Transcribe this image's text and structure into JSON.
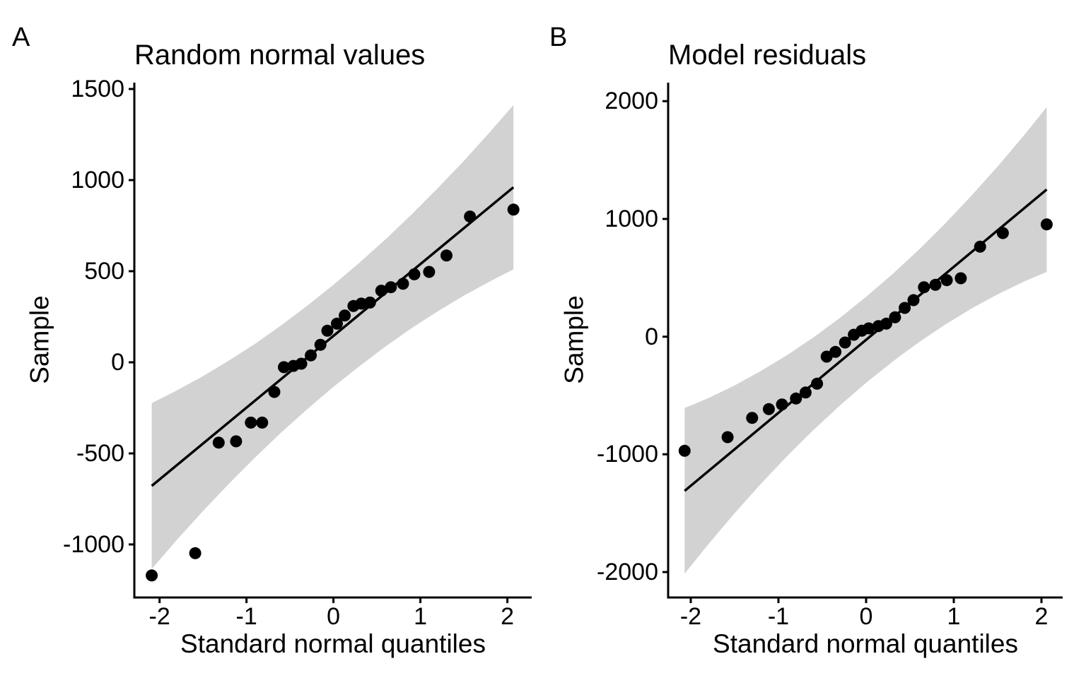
{
  "figure": {
    "background": "#ffffff",
    "colors": {
      "point": "#000000",
      "line": "#000000",
      "band": "#d2d2d2",
      "axis": "#000000",
      "text": "#000000"
    }
  },
  "chart_data": [
    {
      "type": "scatter",
      "panel_tag": "A",
      "title": "Random normal values",
      "xlabel": "Standard normal quantiles",
      "ylabel": "Sample",
      "x_ticks": [
        -2,
        -1,
        0,
        1,
        2
      ],
      "y_ticks": [
        1500,
        1000,
        500,
        0,
        -500,
        -1000
      ],
      "xlim": [
        -2.29,
        2.28
      ],
      "ylim": [
        -1291,
        1535
      ],
      "grid": "off",
      "legend": "none",
      "points": [
        [
          -2.09,
          -1170
        ],
        [
          -1.59,
          -1048
        ],
        [
          -1.32,
          -441
        ],
        [
          -1.12,
          -434
        ],
        [
          -0.95,
          -331
        ],
        [
          -0.82,
          -331
        ],
        [
          -0.68,
          -163
        ],
        [
          -0.57,
          -27
        ],
        [
          -0.46,
          -20
        ],
        [
          -0.37,
          -8
        ],
        [
          -0.26,
          38
        ],
        [
          -0.15,
          96
        ],
        [
          -0.07,
          173
        ],
        [
          0.04,
          212
        ],
        [
          0.13,
          257
        ],
        [
          0.23,
          309
        ],
        [
          0.32,
          322
        ],
        [
          0.42,
          328
        ],
        [
          0.55,
          393
        ],
        [
          0.66,
          412
        ],
        [
          0.8,
          431
        ],
        [
          0.93,
          483
        ],
        [
          1.1,
          496
        ],
        [
          1.3,
          586
        ],
        [
          1.57,
          800
        ],
        [
          2.07,
          838
        ]
      ],
      "qq_line": {
        "intercept": 145,
        "slope": 394,
        "q_start": -2.09,
        "q_end": 2.07
      },
      "confidence_band": [
        [
          -2.09,
          -1134,
          -224
        ],
        [
          -1.8,
          -974,
          -154
        ],
        [
          -1.5,
          -816,
          -76
        ],
        [
          -1.2,
          -666,
          10
        ],
        [
          -0.9,
          -522,
          102
        ],
        [
          -0.6,
          -385,
          203
        ],
        [
          -0.3,
          -257,
          311
        ],
        [
          0,
          -135,
          425
        ],
        [
          0.3,
          -21,
          547
        ],
        [
          0.6,
          87,
          675
        ],
        [
          0.9,
          188,
          812
        ],
        [
          1.2,
          280,
          956
        ],
        [
          1.5,
          366,
          1106
        ],
        [
          1.8,
          444,
          1264
        ],
        [
          2.07,
          510,
          1412
        ]
      ]
    },
    {
      "type": "scatter",
      "panel_tag": "B",
      "title": "Model residuals",
      "xlabel": "Standard normal quantiles",
      "ylabel": "Sample",
      "x_ticks": [
        -2,
        -1,
        0,
        1,
        2
      ],
      "y_ticks": [
        2000,
        1000,
        0,
        -1000,
        -2000
      ],
      "xlim": [
        -2.258,
        2.242
      ],
      "ylim": [
        -2216,
        2158
      ],
      "grid": "off",
      "legend": "none",
      "points": [
        [
          -2.07,
          -970
        ],
        [
          -1.58,
          -854
        ],
        [
          -1.3,
          -690
        ],
        [
          -1.11,
          -616
        ],
        [
          -0.96,
          -576
        ],
        [
          -0.8,
          -526
        ],
        [
          -0.69,
          -475
        ],
        [
          -0.56,
          -400
        ],
        [
          -0.45,
          -170
        ],
        [
          -0.35,
          -130
        ],
        [
          -0.24,
          -50
        ],
        [
          -0.14,
          16
        ],
        [
          -0.05,
          50
        ],
        [
          0.03,
          70
        ],
        [
          0.14,
          90
        ],
        [
          0.23,
          110
        ],
        [
          0.33,
          164
        ],
        [
          0.44,
          244
        ],
        [
          0.54,
          310
        ],
        [
          0.66,
          420
        ],
        [
          0.79,
          440
        ],
        [
          0.92,
          480
        ],
        [
          1.08,
          496
        ],
        [
          1.3,
          764
        ],
        [
          1.56,
          880
        ],
        [
          2.06,
          954
        ]
      ],
      "qq_line": {
        "intercept": -27,
        "slope": 620,
        "q_start": -2.07,
        "q_end": 2.06
      },
      "confidence_band": [
        [
          -2.07,
          -2014,
          -606
        ],
        [
          -1.8,
          -1764,
          -522
        ],
        [
          -1.5,
          -1500,
          -414
        ],
        [
          -1.2,
          -1250,
          -292
        ],
        [
          -0.9,
          -1014,
          -156
        ],
        [
          -0.6,
          -792,
          -6
        ],
        [
          -0.3,
          -585,
          159
        ],
        [
          0,
          -392,
          338
        ],
        [
          0.3,
          -213,
          531
        ],
        [
          0.6,
          -48,
          738
        ],
        [
          0.9,
          102,
          960
        ],
        [
          1.2,
          238,
          1196
        ],
        [
          1.5,
          360,
          1446
        ],
        [
          1.8,
          468,
          1710
        ],
        [
          2.06,
          550,
          1950
        ]
      ]
    }
  ]
}
